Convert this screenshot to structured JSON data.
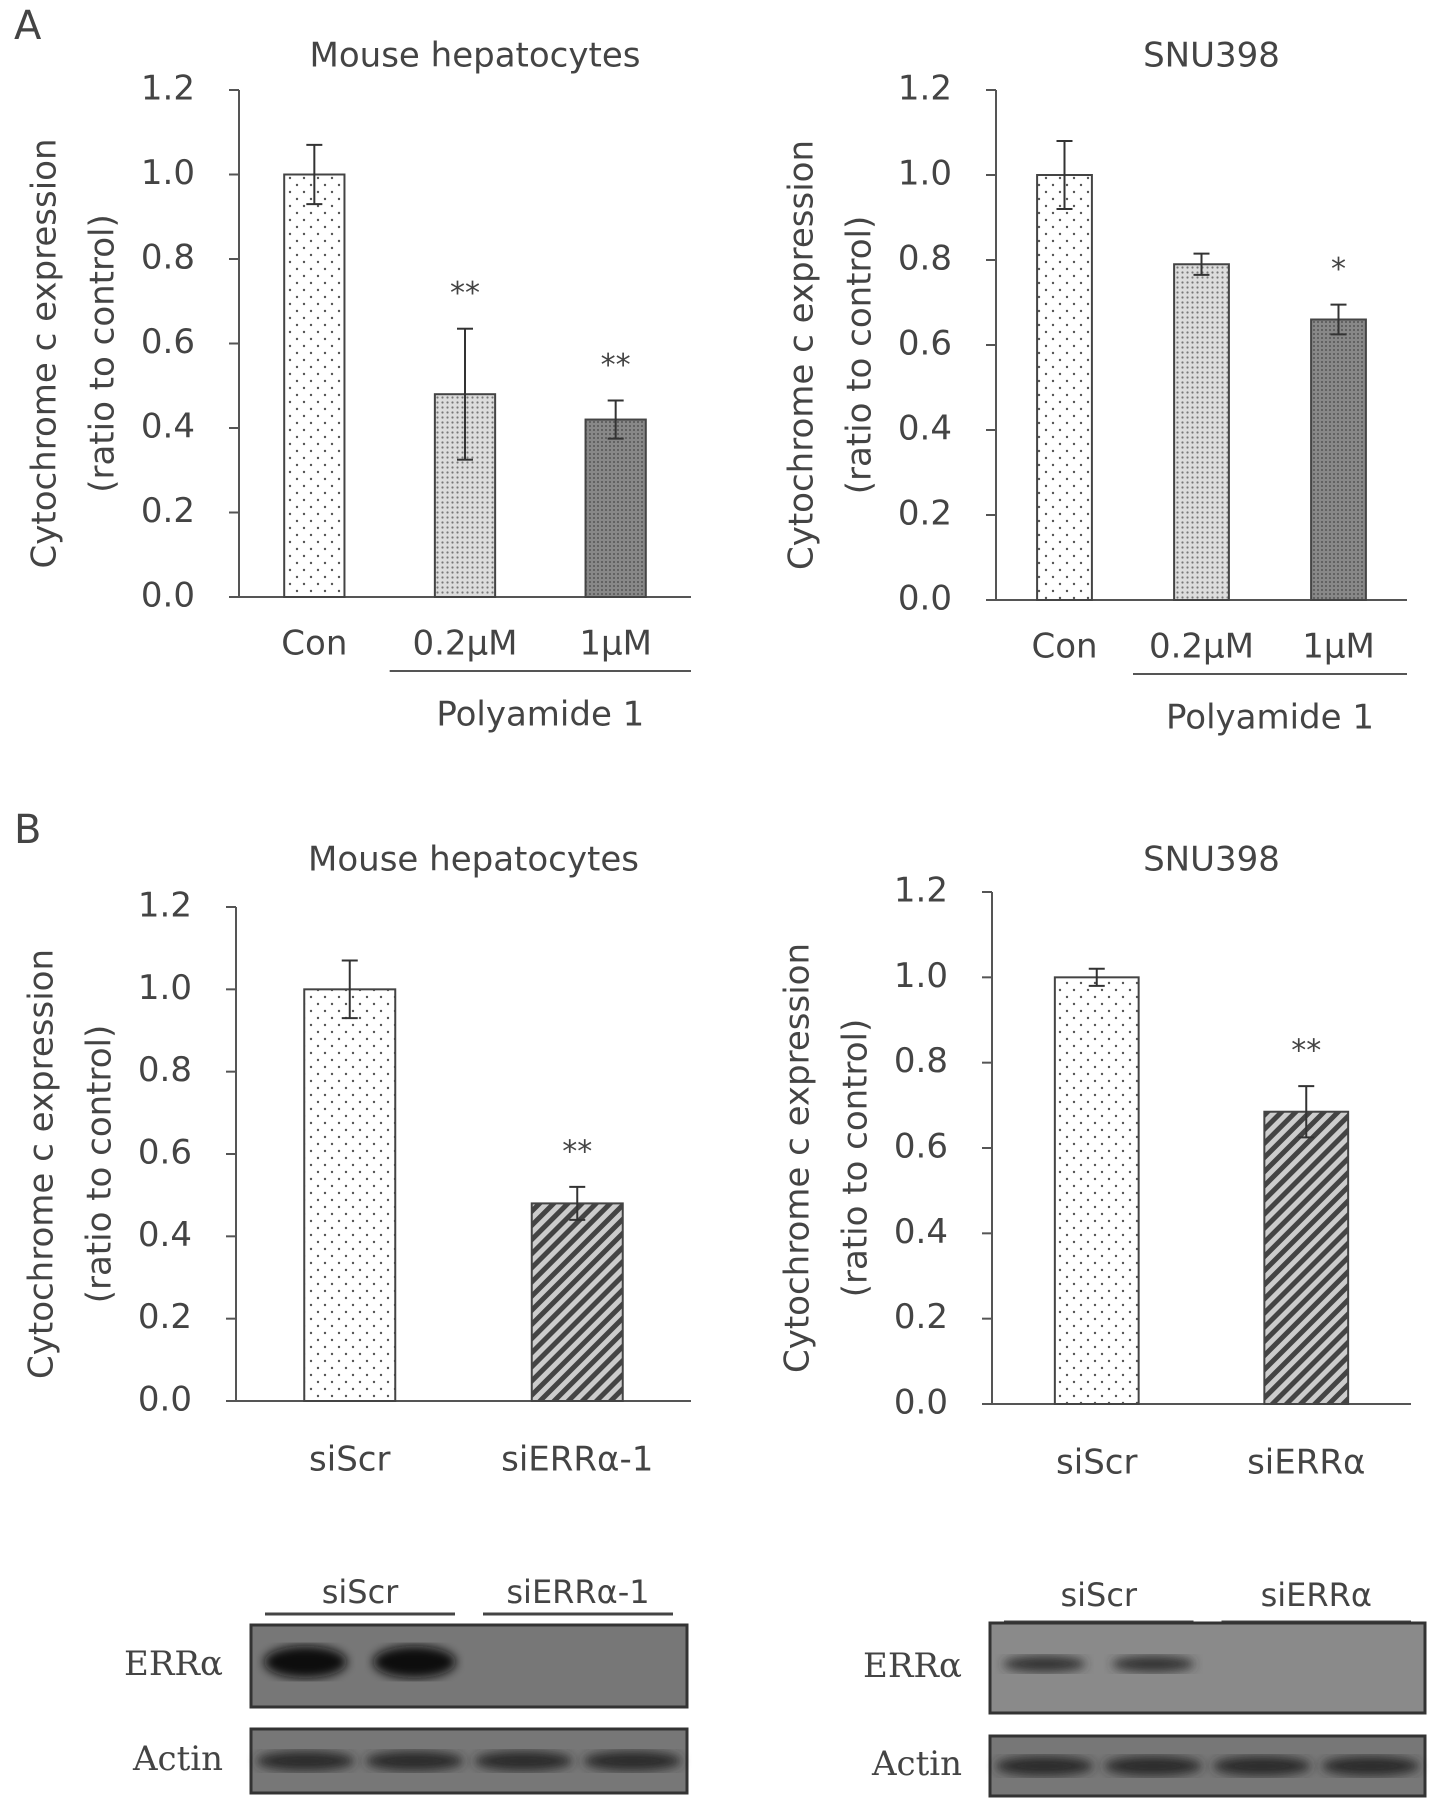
{
  "panel_labels": [
    "A",
    "B"
  ],
  "chart_data": [
    {
      "type": "bar",
      "title": "Mouse hepatocytes",
      "ylabel": [
        "Cytochrome c expression",
        "(ratio to control)"
      ],
      "categories": [
        "Con",
        "0.2μM",
        "1μM"
      ],
      "values": [
        1.0,
        0.48,
        0.42
      ],
      "errors": [
        0.07,
        0.155,
        0.045
      ],
      "annotations": [
        null,
        "**",
        "**"
      ],
      "fills": [
        "sparse-dots",
        "dense-dots",
        "dark-dots"
      ],
      "group_label": "Polyamide 1",
      "group_span": [
        1,
        2
      ],
      "ylim": [
        0,
        1.2
      ],
      "yticks": [
        {
          "value": 0,
          "label": "0.0"
        },
        0.2,
        0.4,
        0.6,
        0.8,
        {
          "value": 1,
          "label": "1.0"
        },
        1.2
      ]
    },
    {
      "type": "bar",
      "title": "SNU398",
      "ylabel": [
        "Cytochrome c expression",
        "(ratio to control)"
      ],
      "categories": [
        "Con",
        "0.2μM",
        "1μM"
      ],
      "values": [
        1.0,
        0.79,
        0.66
      ],
      "errors": [
        0.08,
        0.025,
        0.035
      ],
      "annotations": [
        null,
        null,
        "*"
      ],
      "fills": [
        "sparse-dots",
        "dense-dots",
        "dark-dots"
      ],
      "group_label": "Polyamide 1",
      "group_span": [
        1,
        2
      ],
      "ylim": [
        0,
        1.2
      ],
      "yticks": [
        {
          "value": 0,
          "label": "0.0"
        },
        0.2,
        0.4,
        0.6,
        0.8,
        {
          "value": 1,
          "label": "1.0"
        },
        1.2
      ]
    },
    {
      "type": "bar",
      "title": "Mouse hepatocytes",
      "ylabel": [
        "Cytochrome c expression",
        "(ratio to control)"
      ],
      "categories": [
        "siScr",
        "siERRα-1"
      ],
      "values": [
        1.0,
        0.48
      ],
      "errors": [
        0.07,
        0.04
      ],
      "annotations": [
        null,
        "**"
      ],
      "fills": [
        "sparse-dots",
        "hatch"
      ],
      "ylim": [
        0,
        1.2
      ],
      "yticks": [
        {
          "value": 0,
          "label": "0.0"
        },
        0.2,
        0.4,
        0.6,
        0.8,
        {
          "value": 1,
          "label": "1.0"
        },
        1.2
      ]
    },
    {
      "type": "bar",
      "title": "SNU398",
      "ylabel": [
        "Cytochrome c expression",
        "(ratio to control)"
      ],
      "categories": [
        "siScr",
        "siERRα"
      ],
      "values": [
        1.0,
        0.685
      ],
      "errors": [
        0.02,
        0.06
      ],
      "annotations": [
        null,
        "**"
      ],
      "fills": [
        "sparse-dots",
        "hatch"
      ],
      "ylim": [
        0,
        1.2
      ],
      "yticks": [
        {
          "value": 0,
          "label": "0.0"
        },
        0.2,
        0.4,
        0.6,
        0.8,
        {
          "value": 1,
          "label": "1.0"
        },
        1.2
      ]
    }
  ],
  "blots": [
    {
      "lanes": [
        "siScr",
        "siERRα-1"
      ],
      "rows": [
        "ERRα",
        "Actin"
      ]
    },
    {
      "lanes": [
        "siScr",
        "siERRα"
      ],
      "rows": [
        "ERRα",
        "Actin"
      ]
    }
  ]
}
